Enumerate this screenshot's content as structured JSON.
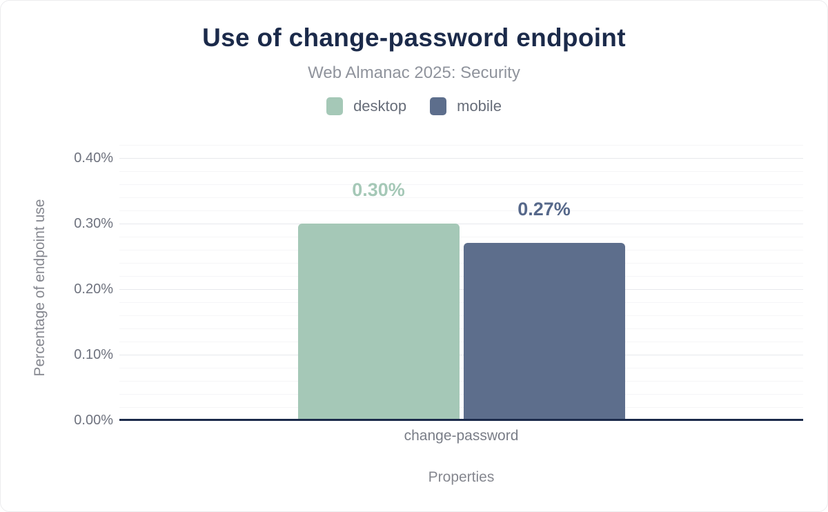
{
  "header": {
    "title": "Use of change-password endpoint",
    "subtitle": "Web Almanac 2025: Security"
  },
  "chart_data": {
    "type": "bar",
    "title": "Use of change-password endpoint",
    "subtitle": "Web Almanac 2025: Security",
    "categories": [
      "change-password"
    ],
    "series": [
      {
        "name": "desktop",
        "values": [
          0.3
        ],
        "data_labels": [
          "0.30%"
        ],
        "color": "#a5c8b7",
        "label_color": "#a5c8b7"
      },
      {
        "name": "mobile",
        "values": [
          0.27
        ],
        "data_labels": [
          "0.27%"
        ],
        "color": "#5d6e8c",
        "label_color": "#56688a"
      }
    ],
    "xlabel": "Properties",
    "ylabel": "Percentage of endpoint use",
    "ylim": [
      0,
      0.42
    ],
    "yticks": [
      {
        "value": 0.0,
        "label": "0.00%"
      },
      {
        "value": 0.1,
        "label": "0.10%"
      },
      {
        "value": 0.2,
        "label": "0.20%"
      },
      {
        "value": 0.3,
        "label": "0.30%"
      },
      {
        "value": 0.4,
        "label": "0.40%"
      }
    ],
    "minor_tick_step": 0.02,
    "grid": true,
    "legend_position": "top"
  },
  "theme": {
    "title_color": "#1b2a4a",
    "subtitle_color": "#8f939c",
    "axis_line_color": "#1b2a4a",
    "major_grid_color": "#e7e8ec",
    "minor_grid_color": "#f5f5f7",
    "tick_label_color": "#6e727e",
    "background": "#ffffff"
  }
}
